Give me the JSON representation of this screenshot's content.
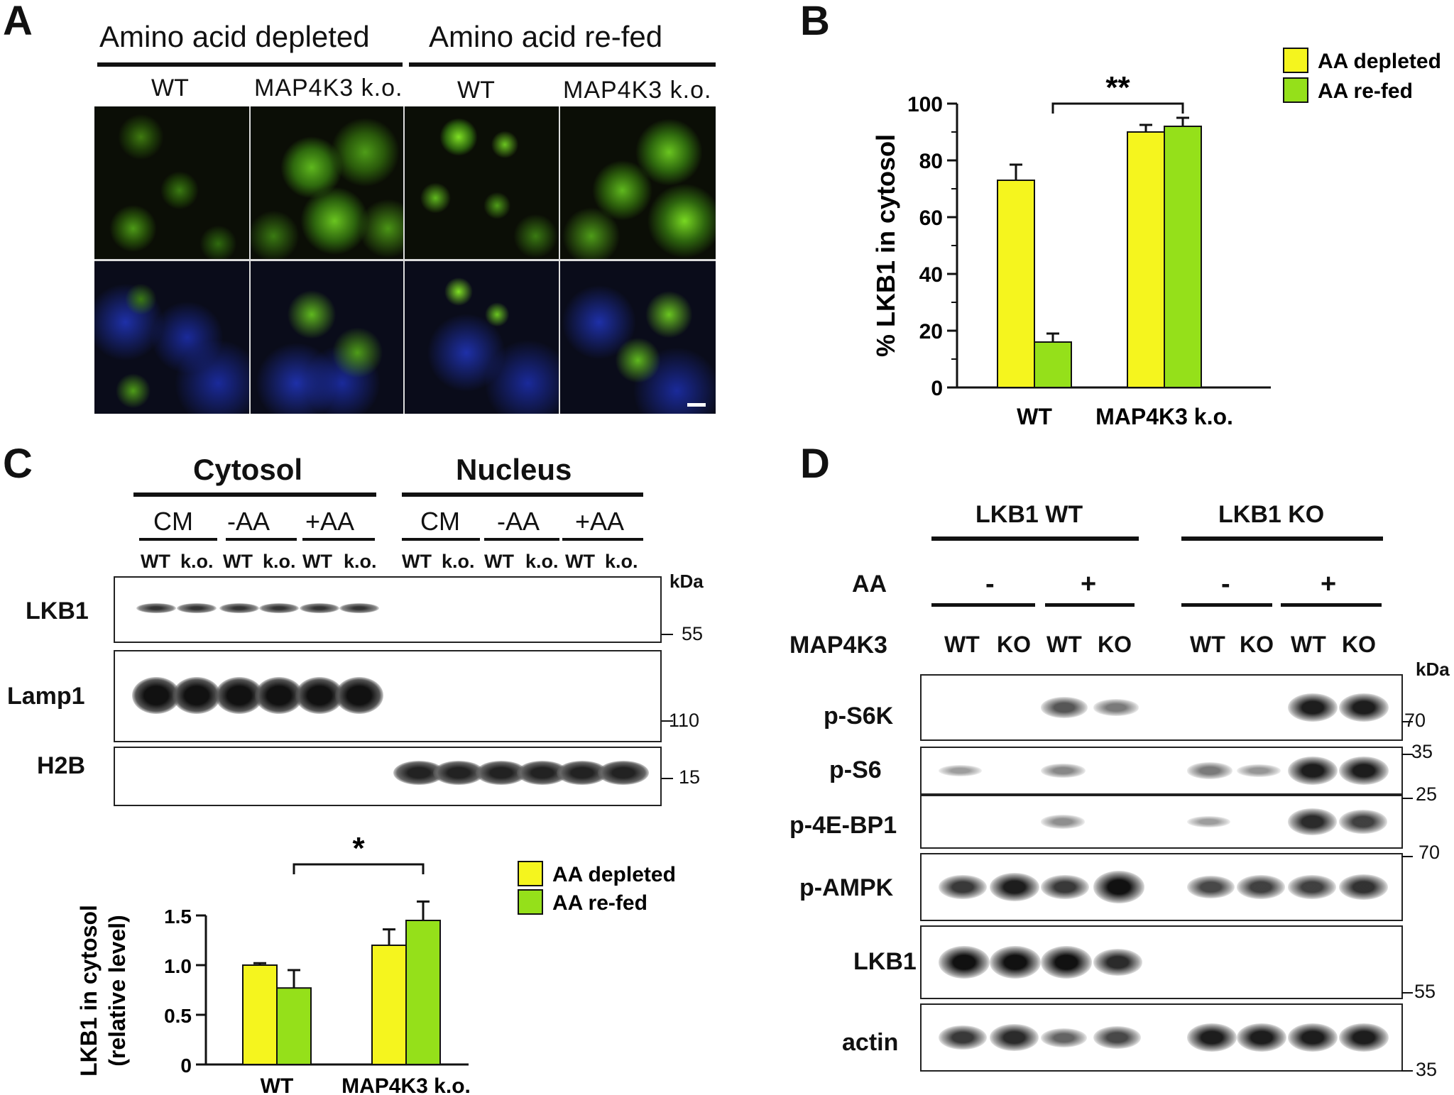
{
  "panel_a": {
    "letter": "A",
    "group_labels": [
      "Amino acid depleted",
      "Amino acid re-fed"
    ],
    "column_labels": [
      "WT",
      "MAP4K3 k.o.",
      "WT",
      "MAP4K3 k.o."
    ]
  },
  "panel_b": {
    "letter": "B",
    "chart_data": {
      "type": "bar",
      "categories": [
        "WT",
        "MAP4K3 k.o."
      ],
      "series": [
        {
          "name": "AA depleted",
          "values": [
            73,
            90
          ],
          "errors": [
            5.5,
            2.5
          ],
          "color": "#f5f51e"
        },
        {
          "name": "AA re-fed",
          "values": [
            16,
            92
          ],
          "errors": [
            3,
            3
          ],
          "color": "#95e01a"
        }
      ],
      "ylabel": "% LKB1 in cytosol",
      "ylim": [
        0,
        100
      ],
      "yticks": [
        "0",
        "20",
        "40",
        "60",
        "80",
        "100"
      ],
      "legend": "top-right",
      "significance": "**"
    }
  },
  "panel_c": {
    "letter": "C",
    "fractions": [
      "Cytosol",
      "Nucleus"
    ],
    "conditions": [
      "CM",
      "-AA",
      "+AA",
      "CM",
      "-AA",
      "+AA"
    ],
    "genotypes": [
      "WT",
      "k.o.",
      "WT",
      "k.o.",
      "WT",
      "k.o.",
      "WT",
      "k.o.",
      "WT",
      "k.o.",
      "WT",
      "k.o."
    ],
    "blots": [
      "LKB1",
      "Lamp1",
      "H2B"
    ],
    "kda_label": "kDa",
    "markers": [
      "55",
      "110",
      "15"
    ],
    "chart_data": {
      "type": "bar",
      "categories": [
        "WT",
        "MAP4K3 k.o."
      ],
      "series": [
        {
          "name": "AA depleted",
          "values": [
            1.0,
            1.2
          ],
          "errors": [
            0.02,
            0.16
          ],
          "color": "#f5f51e"
        },
        {
          "name": "AA re-fed",
          "values": [
            0.77,
            1.45
          ],
          "errors": [
            0.18,
            0.19
          ],
          "color": "#95e01a"
        }
      ],
      "ylabel_line1": "LKB1 in cytosol",
      "ylabel_line2": "(relative level)",
      "ylim": [
        0,
        1.5
      ],
      "yticks": [
        "0",
        "0.5",
        "1.0",
        "1.5"
      ],
      "legend": "top-right",
      "significance": "*"
    }
  },
  "panel_d": {
    "letter": "D",
    "groups": [
      "LKB1 WT",
      "LKB1 KO"
    ],
    "aa_label": "AA",
    "aa_states": [
      "-",
      "+",
      "-",
      "+"
    ],
    "map4k3_label": "MAP4K3",
    "genotypes": [
      "WT",
      "KO",
      "WT",
      "KO",
      "WT",
      "KO",
      "WT",
      "KO"
    ],
    "kda_label": "kDa",
    "blots": [
      "p-S6K",
      "p-S6",
      "p-4E-BP1",
      "p-AMPK",
      "LKB1",
      "actin"
    ],
    "markers": [
      "70",
      "35",
      "25",
      "70",
      "55",
      "35"
    ]
  }
}
